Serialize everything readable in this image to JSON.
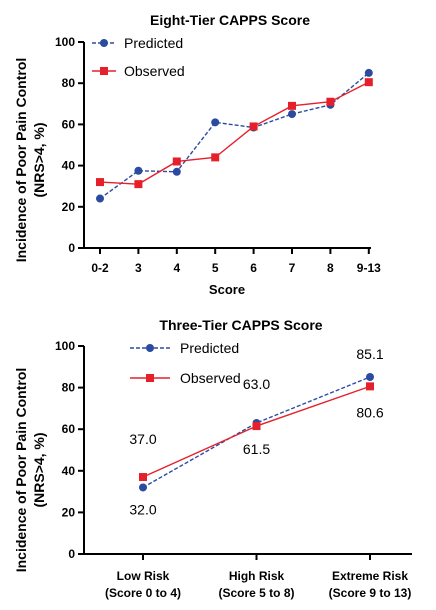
{
  "chart_data": [
    {
      "type": "line",
      "title": "Eight-Tier CAPPS Score",
      "xlabel": "Score",
      "ylabel": "Incidence of Poor Pain Control\n(NRS>4, %)",
      "categories": [
        "0-2",
        "3",
        "4",
        "5",
        "6",
        "7",
        "8",
        "9-13"
      ],
      "ylim": [
        0,
        100
      ],
      "yticks": [
        0,
        20,
        40,
        60,
        80,
        100
      ],
      "legend_position": "top-left",
      "grid": false,
      "series": [
        {
          "name": "Predicted",
          "values": [
            24,
            37.5,
            37,
            61,
            58.5,
            65,
            69.5,
            85
          ],
          "color": "#2b4ba0",
          "marker": "circle",
          "dash": "dashed"
        },
        {
          "name": "Observed",
          "values": [
            32,
            31,
            42,
            44,
            59,
            69,
            71,
            80.5
          ],
          "color": "#e5202a",
          "marker": "square",
          "dash": "solid"
        }
      ]
    },
    {
      "type": "line",
      "title": "Three-Tier CAPPS Score",
      "xlabel": "",
      "ylabel": "Incidence of Poor Pain Control\n(NRS>4, %)",
      "categories": [
        "Low Risk\n(Score 0 to 4)",
        "High Risk\n(Score 5 to 8)",
        "Extreme Risk\n(Score 9 to 13)"
      ],
      "ylim": [
        0,
        100
      ],
      "yticks": [
        0,
        20,
        40,
        60,
        80,
        100
      ],
      "legend_position": "top-left",
      "grid": false,
      "series": [
        {
          "name": "Predicted",
          "values": [
            32.0,
            63.0,
            85.1
          ],
          "labels": [
            "32.0",
            "63.0",
            "85.1"
          ],
          "color": "#2b4ba0",
          "marker": "circle",
          "dash": "dashed"
        },
        {
          "name": "Observed",
          "values": [
            37.0,
            61.5,
            80.6
          ],
          "labels": [
            "37.0",
            "61.5",
            "80.6"
          ],
          "color": "#e5202a",
          "marker": "square",
          "dash": "solid"
        }
      ]
    }
  ]
}
